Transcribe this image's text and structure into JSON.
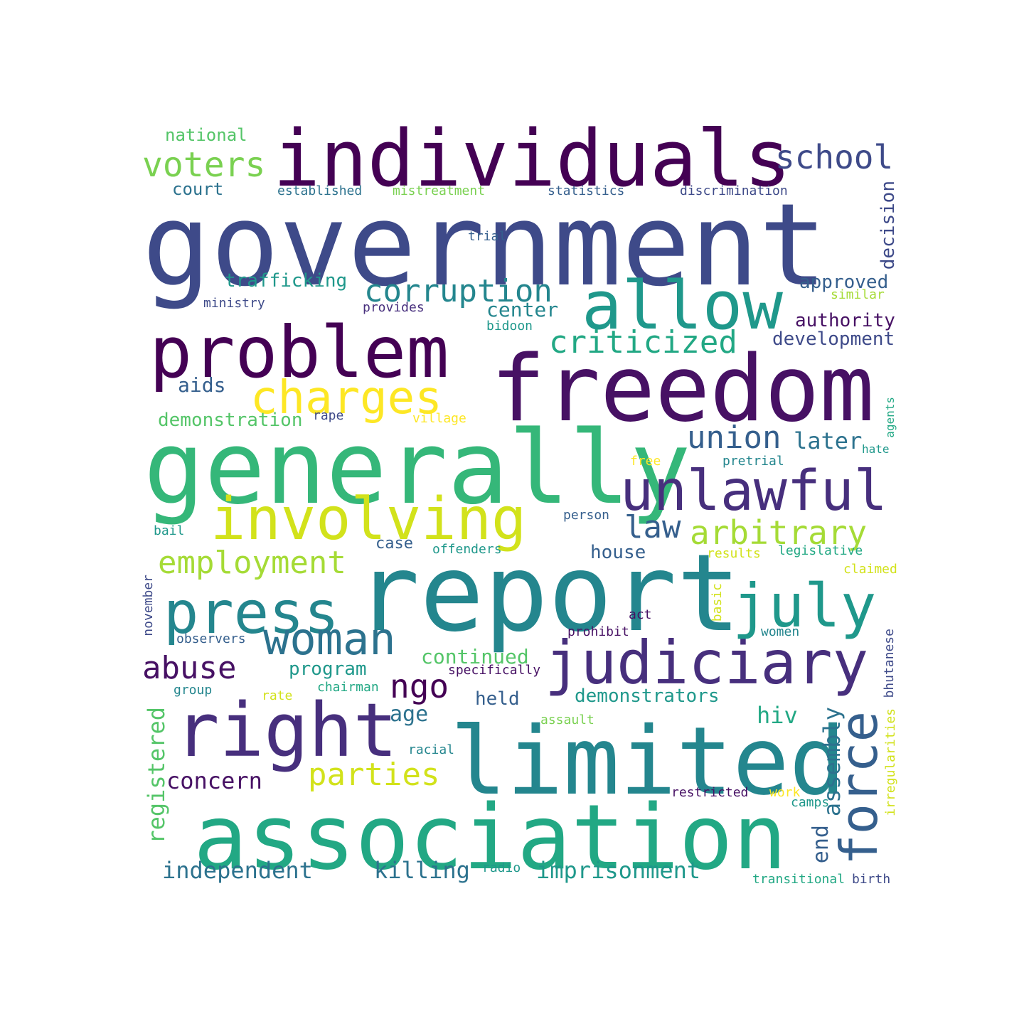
{
  "title": "",
  "palette": {
    "w1": "#440154",
    "w2": "#471164",
    "w3": "#472f7d",
    "w4": "#3e4a89",
    "w5": "#355f8d",
    "w6": "#2c728e",
    "w7": "#24868e",
    "w8": "#1f988b",
    "w9": "#22a884",
    "w10": "#35b779",
    "w11": "#54c568",
    "w12": "#7ad151",
    "w13": "#a5db36",
    "w14": "#d2e21b",
    "w15": "#fde725"
  },
  "words": [
    {
      "text": "government",
      "color": "w4"
    },
    {
      "text": "individuals",
      "color": "w1"
    },
    {
      "text": "generally",
      "color": "w10"
    },
    {
      "text": "report",
      "color": "w7"
    },
    {
      "text": "freedom",
      "color": "w2"
    },
    {
      "text": "association",
      "color": "w9"
    },
    {
      "text": "limited",
      "color": "w7"
    },
    {
      "text": "problem",
      "color": "w1"
    },
    {
      "text": "allow",
      "color": "w8"
    },
    {
      "text": "right",
      "color": "w3"
    },
    {
      "text": "involving",
      "color": "w14"
    },
    {
      "text": "judiciary",
      "color": "w3"
    },
    {
      "text": "unlawful",
      "color": "w3"
    },
    {
      "text": "press",
      "color": "w7"
    },
    {
      "text": "july",
      "color": "w8"
    },
    {
      "text": "charges",
      "color": "w15"
    },
    {
      "text": "woman",
      "color": "w6"
    },
    {
      "text": "force",
      "color": "w5"
    },
    {
      "text": "corruption",
      "color": "w7"
    },
    {
      "text": "criticized",
      "color": "w9"
    },
    {
      "text": "arbitrary",
      "color": "w13"
    },
    {
      "text": "employment",
      "color": "w13"
    },
    {
      "text": "voters",
      "color": "w12"
    },
    {
      "text": "school",
      "color": "w4"
    },
    {
      "text": "abuse",
      "color": "w2"
    },
    {
      "text": "union",
      "color": "w5"
    },
    {
      "text": "parties",
      "color": "w14"
    },
    {
      "text": "ngo",
      "color": "w1"
    },
    {
      "text": "law",
      "color": "w5"
    },
    {
      "text": "imprisonment",
      "color": "w8"
    },
    {
      "text": "killing",
      "color": "w6"
    },
    {
      "text": "independent",
      "color": "w6"
    },
    {
      "text": "concern",
      "color": "w2"
    },
    {
      "text": "demonstrators",
      "color": "w8"
    },
    {
      "text": "registered",
      "color": "w11"
    },
    {
      "text": "assembly",
      "color": "w6"
    },
    {
      "text": "trafficking",
      "color": "w8"
    },
    {
      "text": "demonstration",
      "color": "w11"
    },
    {
      "text": "continued",
      "color": "w11"
    },
    {
      "text": "development",
      "color": "w4"
    },
    {
      "text": "approved",
      "color": "w5"
    },
    {
      "text": "authority",
      "color": "w2"
    },
    {
      "text": "center",
      "color": "w7"
    },
    {
      "text": "later",
      "color": "w6"
    },
    {
      "text": "hiv",
      "color": "w9"
    },
    {
      "text": "end",
      "color": "w5"
    },
    {
      "text": "program",
      "color": "w8"
    },
    {
      "text": "age",
      "color": "w6"
    },
    {
      "text": "held",
      "color": "w5"
    },
    {
      "text": "house",
      "color": "w5"
    },
    {
      "text": "aids",
      "color": "w5"
    },
    {
      "text": "court",
      "color": "w6"
    },
    {
      "text": "national",
      "color": "w11"
    },
    {
      "text": "decision",
      "color": "w4"
    },
    {
      "text": "case",
      "color": "w5"
    },
    {
      "text": "established",
      "color": "w6"
    },
    {
      "text": "mistreatment",
      "color": "w12"
    },
    {
      "text": "statistics",
      "color": "w5"
    },
    {
      "text": "discrimination",
      "color": "w4"
    },
    {
      "text": "trial",
      "color": "w5"
    },
    {
      "text": "ministry",
      "color": "w4"
    },
    {
      "text": "provides",
      "color": "w3"
    },
    {
      "text": "similar",
      "color": "w13"
    },
    {
      "text": "bidoon",
      "color": "w8"
    },
    {
      "text": "rape",
      "color": "w4"
    },
    {
      "text": "village",
      "color": "w15"
    },
    {
      "text": "agents",
      "color": "w9"
    },
    {
      "text": "hate",
      "color": "w8"
    },
    {
      "text": "free",
      "color": "w15"
    },
    {
      "text": "pretrial",
      "color": "w7"
    },
    {
      "text": "person",
      "color": "w5"
    },
    {
      "text": "bail",
      "color": "w8"
    },
    {
      "text": "offenders",
      "color": "w8"
    },
    {
      "text": "results",
      "color": "w14"
    },
    {
      "text": "legislative",
      "color": "w9"
    },
    {
      "text": "claimed",
      "color": "w14"
    },
    {
      "text": "november",
      "color": "w4"
    },
    {
      "text": "basic",
      "color": "w14"
    },
    {
      "text": "act",
      "color": "w2"
    },
    {
      "text": "observers",
      "color": "w5"
    },
    {
      "text": "prohibit",
      "color": "w2"
    },
    {
      "text": "women",
      "color": "w7"
    },
    {
      "text": "bhutanese",
      "color": "w4"
    },
    {
      "text": "specifically",
      "color": "w2"
    },
    {
      "text": "group",
      "color": "w7"
    },
    {
      "text": "rate",
      "color": "w14"
    },
    {
      "text": "chairman",
      "color": "w9"
    },
    {
      "text": "assault",
      "color": "w12"
    },
    {
      "text": "racial",
      "color": "w7"
    },
    {
      "text": "irregularities",
      "color": "w14"
    },
    {
      "text": "restricted",
      "color": "w2"
    },
    {
      "text": "work",
      "color": "w15"
    },
    {
      "text": "camps",
      "color": "w8"
    },
    {
      "text": "radio",
      "color": "w8"
    },
    {
      "text": "transitional",
      "color": "w9"
    },
    {
      "text": "birth",
      "color": "w4"
    }
  ]
}
